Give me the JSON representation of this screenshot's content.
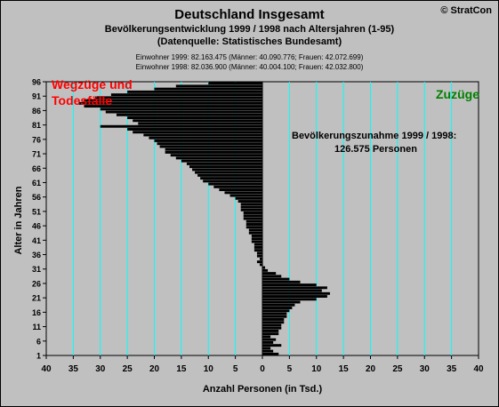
{
  "header": {
    "title": "Deutschland Insgesamt",
    "subtitle": "Bevölkerungsentwicklung 1999 / 1998  nach Altersjahren (1-95)",
    "source": "(Datenquelle: Statistisches Bundesamt)",
    "population_1999": "Einwohner 1999: 82.163.475  (Männer: 40.090.776; Frauen: 42.072.699)",
    "population_1998": "Einwohner 1998: 82.036.900  (Männer: 40.004.100; Frauen: 42.032.800)",
    "copyright": "© StratCon"
  },
  "colors": {
    "background": "#c0c0c0",
    "plot_background": "#c0c0c0",
    "gridline": "#00ffff",
    "bar": "#000000",
    "negative_label": "#ff0000",
    "positive_label": "#008000"
  },
  "chart_data": {
    "type": "bar",
    "orientation": "horizontal",
    "title": "Deutschland Insgesamt",
    "xlabel": "Anzahl Personen (in Tsd.)",
    "ylabel": "Alter in Jahren",
    "xlim": [
      -40,
      40
    ],
    "ylim": [
      1,
      96
    ],
    "x_ticks": [
      -40,
      -35,
      -30,
      -25,
      -20,
      -15,
      -10,
      -5,
      0,
      5,
      10,
      15,
      20,
      25,
      30,
      35,
      40
    ],
    "x_tick_labels": [
      "40",
      "35",
      "30",
      "25",
      "20",
      "15",
      "10",
      "5",
      "0",
      "5",
      "10",
      "15",
      "20",
      "25",
      "30",
      "35",
      "40"
    ],
    "y_ticks": [
      1,
      6,
      11,
      16,
      21,
      26,
      31,
      36,
      41,
      46,
      51,
      56,
      61,
      66,
      71,
      76,
      81,
      86,
      91,
      96
    ],
    "grid": true,
    "annotations": {
      "negative_side": [
        "Wegzüge und",
        "Todesfälle"
      ],
      "positive_side": "Zuzüge",
      "summary": [
        "Bevölkerungszunahme 1999 / 1998:",
        "126.575 Personen"
      ]
    },
    "ages": [
      1,
      2,
      3,
      4,
      5,
      6,
      7,
      8,
      9,
      10,
      11,
      12,
      13,
      14,
      15,
      16,
      17,
      18,
      19,
      20,
      21,
      22,
      23,
      24,
      25,
      26,
      27,
      28,
      29,
      30,
      31,
      32,
      33,
      34,
      35,
      36,
      37,
      38,
      39,
      40,
      41,
      42,
      43,
      44,
      45,
      46,
      47,
      48,
      49,
      50,
      51,
      52,
      53,
      54,
      55,
      56,
      57,
      58,
      59,
      60,
      61,
      62,
      63,
      64,
      65,
      66,
      67,
      68,
      69,
      70,
      71,
      72,
      73,
      74,
      75,
      76,
      77,
      78,
      79,
      80,
      81,
      82,
      83,
      84,
      85,
      86,
      87,
      88,
      89,
      90,
      91,
      92,
      93,
      94,
      95
    ],
    "values": [
      3,
      2,
      1.5,
      3.5,
      2,
      2.5,
      1.5,
      3,
      3,
      3.5,
      3.5,
      4,
      4,
      4.5,
      4.5,
      5,
      5.5,
      6,
      7,
      10,
      12,
      12.5,
      11,
      12,
      10,
      7,
      5,
      3.5,
      2.5,
      1,
      0.5,
      -0.5,
      -1,
      -0.5,
      -1,
      -1,
      -1.5,
      -1.5,
      -1.5,
      -2,
      -2,
      -2,
      -2.5,
      -2.5,
      -3,
      -3,
      -3,
      -3.5,
      -3.5,
      -3.5,
      -4,
      -4,
      -4,
      -4.5,
      -5,
      -6,
      -7,
      -8,
      -9,
      -10,
      -11,
      -11.5,
      -12,
      -12.5,
      -13,
      -13.5,
      -14,
      -15,
      -16,
      -17,
      -18,
      -18,
      -19,
      -19.5,
      -20,
      -21,
      -22,
      -24,
      -25,
      -30,
      -23,
      -24,
      -25,
      -27,
      -29,
      -30,
      -33,
      -34,
      -33,
      -31,
      -28,
      -25,
      -20,
      -16,
      -10
    ]
  }
}
